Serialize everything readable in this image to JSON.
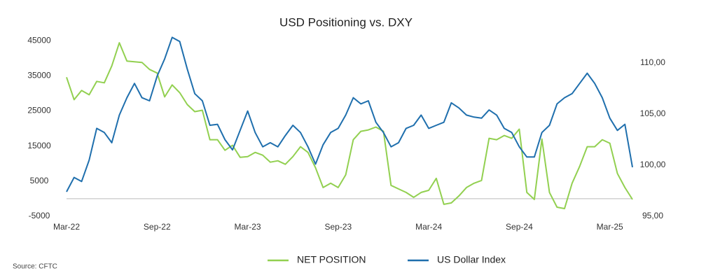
{
  "chart_data": {
    "type": "line",
    "title": "USD Positioning vs. DXY",
    "source": "Source: CFTC",
    "legend": "bottom",
    "categories": [
      "Mar-22",
      null,
      null,
      null,
      null,
      null,
      null,
      null,
      null,
      null,
      null,
      null,
      "Sep-22",
      null,
      null,
      null,
      null,
      null,
      null,
      null,
      null,
      null,
      null,
      null,
      "Mar-23",
      null,
      null,
      null,
      null,
      null,
      null,
      null,
      null,
      null,
      null,
      null,
      "Sep-23",
      null,
      null,
      null,
      null,
      null,
      null,
      null,
      null,
      null,
      null,
      null,
      "Mar-24",
      null,
      null,
      null,
      null,
      null,
      null,
      null,
      null,
      null,
      null,
      null,
      "Sep-24",
      null,
      null,
      null,
      null,
      null,
      null,
      null,
      null,
      null,
      null,
      null,
      "Mar-25",
      null,
      null,
      null
    ],
    "ylim": [
      -5000,
      50000
    ],
    "yticks": [
      -5000,
      5000,
      15000,
      25000,
      35000,
      45000
    ],
    "y2lim": [
      95,
      113.9
    ],
    "y2ticks": [
      {
        "value": 95,
        "label": "95,00"
      },
      {
        "value": 100,
        "label": "100,00"
      },
      {
        "value": 105,
        "label": "105,00"
      },
      {
        "value": 110,
        "label": "110,00"
      }
    ],
    "series": [
      {
        "name": "NET POSITION",
        "color": "#92d050",
        "values": [
          34600,
          28200,
          30800,
          29600,
          33400,
          33000,
          37800,
          44400,
          39200,
          39000,
          38800,
          36800,
          35800,
          29000,
          32400,
          30200,
          26800,
          24800,
          25200,
          16800,
          16800,
          13800,
          15200,
          11800,
          12000,
          13200,
          12400,
          10400,
          10800,
          9800,
          12000,
          14800,
          13200,
          8800,
          3200,
          4400,
          3200,
          6800,
          16800,
          19200,
          19600,
          20400,
          19200,
          3800,
          2800,
          1800,
          400,
          1800,
          2400,
          5800,
          -1600,
          -1200,
          800,
          3200,
          4400,
          5200,
          17200,
          16800,
          18000,
          17200,
          19800,
          1800,
          -200,
          17000,
          1800,
          -2400,
          -2800,
          4400,
          9200,
          14800,
          14800,
          16800,
          15800,
          7200,
          3200,
          -200
        ]
      },
      {
        "name": "US Dollar Index",
        "color": "#1f6fad",
        "axis": "y2",
        "values": [
          97.4,
          98.8,
          98.4,
          100.5,
          103.6,
          103.2,
          102.2,
          104.9,
          106.6,
          108.0,
          106.6,
          106.3,
          108.7,
          110.4,
          112.5,
          112.1,
          109.4,
          107.0,
          106.3,
          103.9,
          104.0,
          102.5,
          101.5,
          103.4,
          105.3,
          103.2,
          101.8,
          102.2,
          101.8,
          102.9,
          103.9,
          103.2,
          101.8,
          100.1,
          102.0,
          103.2,
          103.6,
          104.9,
          106.6,
          106.0,
          106.3,
          104.2,
          103.2,
          101.8,
          102.2,
          103.6,
          103.9,
          104.9,
          103.6,
          103.9,
          104.2,
          106.1,
          105.6,
          104.9,
          104.7,
          104.6,
          105.4,
          104.9,
          103.6,
          103.2,
          101.8,
          100.8,
          100.8,
          103.2,
          103.9,
          106.0,
          106.6,
          107.0,
          108.0,
          109.0,
          108.0,
          106.6,
          104.6,
          103.4,
          104.0,
          99.8
        ]
      }
    ]
  }
}
